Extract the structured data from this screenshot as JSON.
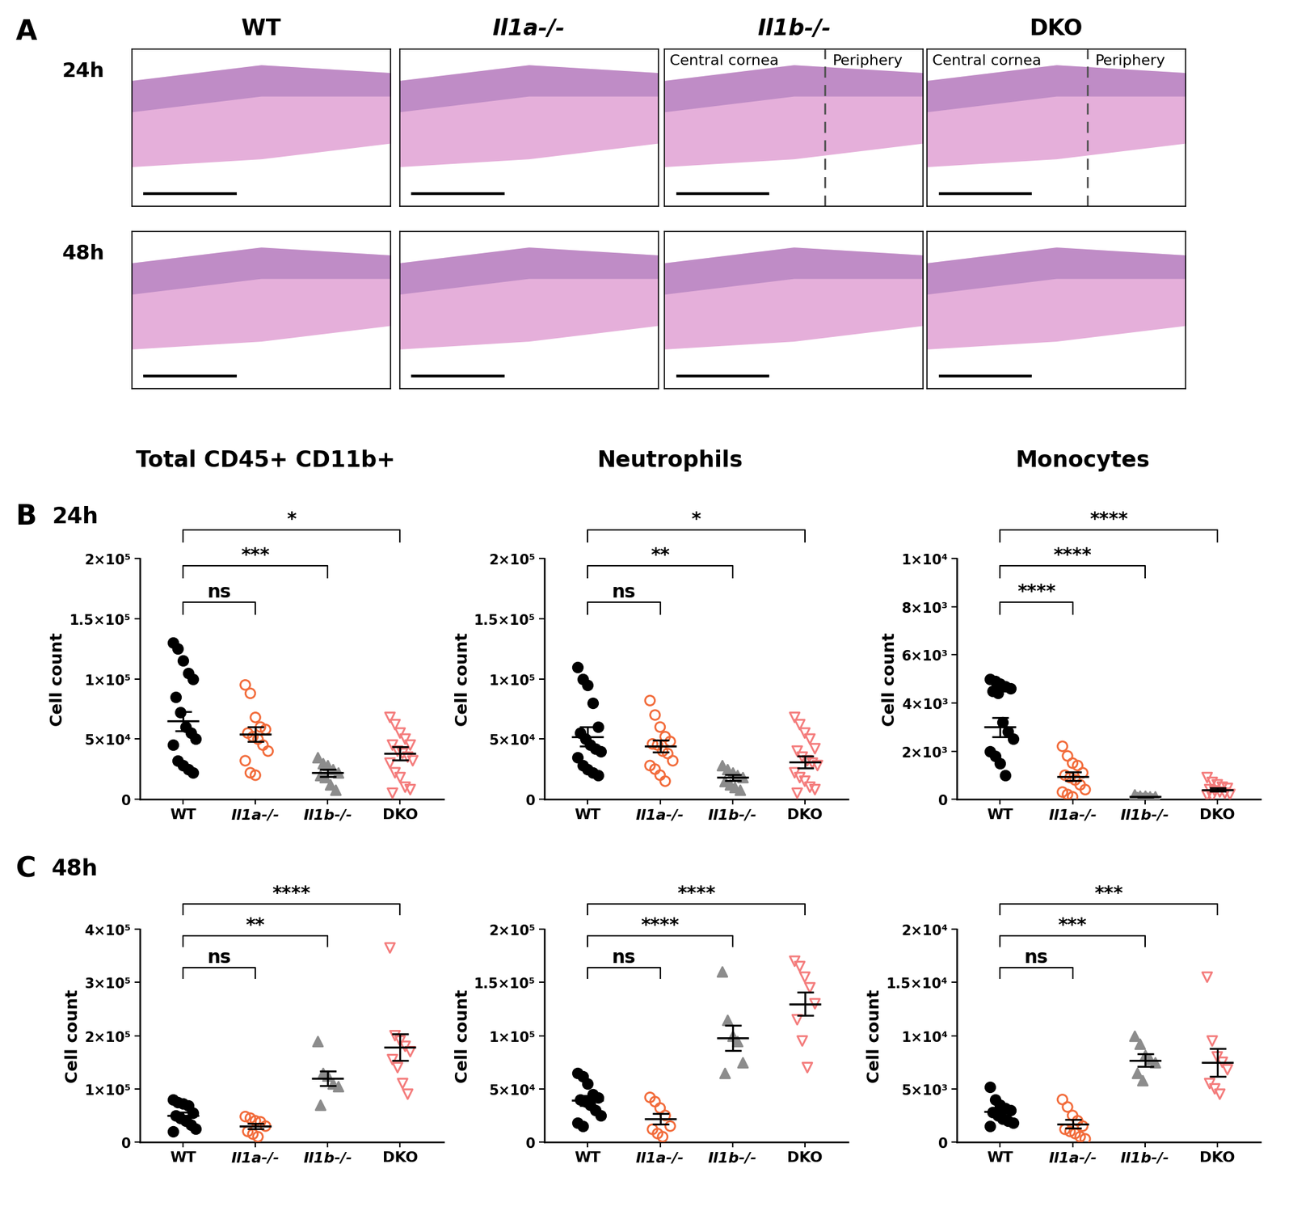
{
  "panel_labels": [
    "A",
    "B",
    "C"
  ],
  "histology": {
    "columns": [
      "WT",
      "Il1a-/-",
      "Il1b-/-",
      "DKO"
    ],
    "rows": [
      "24h",
      "48h"
    ],
    "region_labels": {
      "columns": [
        "Il1b-/-",
        "DKO"
      ],
      "row": "24h",
      "texts": [
        "Central cornea",
        "Periphery"
      ]
    }
  },
  "column_titles": [
    "Total CD45+ CD11b+",
    "Neutrophils",
    "Monocytes"
  ],
  "row_labels": [
    "24h",
    "48h"
  ],
  "chart_data": [
    {
      "type": "scatter",
      "categories": [
        "WT",
        "Il1a-/-",
        "Il1b-/-",
        "DKO"
      ],
      "ylabel": "Cell count",
      "ylim": [
        0,
        200000
      ],
      "yticks": [
        0,
        {
          "value": 50000,
          "label": "5×10⁴"
        },
        {
          "value": 100000,
          "label": "1×10⁵"
        },
        {
          "value": 150000,
          "label": "1.5×10⁵"
        },
        {
          "value": 200000,
          "label": "2×10⁵"
        }
      ],
      "colors": [
        "#000000",
        "#f26b3a",
        "#8c8c8c",
        "#f47c7c"
      ],
      "markers": [
        "circle",
        "open_circle",
        "triangle",
        "open_triangle_down"
      ],
      "points": [
        [
          130000,
          125000,
          115000,
          105000,
          100000,
          85000,
          72000,
          60000,
          55000,
          50000,
          45000,
          32000,
          28000,
          25000,
          22000
        ],
        [
          95000,
          88000,
          68000,
          60000,
          58000,
          55000,
          52000,
          50000,
          45000,
          40000,
          32000,
          22000,
          20000
        ],
        [
          35000,
          30000,
          28000,
          25000,
          22000,
          20000,
          18000,
          12000,
          8000
        ],
        [
          68000,
          62000,
          55000,
          50000,
          45000,
          45000,
          40000,
          38000,
          35000,
          32000,
          30000,
          22000,
          18000,
          10000,
          8000,
          5000
        ]
      ],
      "means": [
        65000,
        54000,
        22000,
        38000
      ],
      "errors": [
        8000,
        6000,
        3000,
        5500
      ],
      "comparisons": [
        {
          "from": "WT",
          "to": "Il1a-/-",
          "label": "ns"
        },
        {
          "from": "WT",
          "to": "Il1b-/-",
          "label": "***"
        },
        {
          "from": "WT",
          "to": "DKO",
          "label": "*"
        }
      ]
    },
    {
      "type": "scatter",
      "categories": [
        "WT",
        "Il1a-/-",
        "Il1b-/-",
        "DKO"
      ],
      "ylabel": "Cell count",
      "ylim": [
        0,
        200000
      ],
      "yticks": [
        0,
        {
          "value": 50000,
          "label": "5×10⁴"
        },
        {
          "value": 100000,
          "label": "1×10⁵"
        },
        {
          "value": 150000,
          "label": "1.5×10⁵"
        },
        {
          "value": 200000,
          "label": "2×10⁵"
        }
      ],
      "colors": [
        "#000000",
        "#f26b3a",
        "#8c8c8c",
        "#f47c7c"
      ],
      "markers": [
        "circle",
        "open_circle",
        "triangle",
        "open_triangle_down"
      ],
      "points": [
        [
          110000,
          100000,
          95000,
          80000,
          60000,
          55000,
          50000,
          45000,
          42000,
          40000,
          35000,
          28000,
          25000,
          22000,
          20000
        ],
        [
          82000,
          70000,
          60000,
          52000,
          48000,
          46000,
          45000,
          40000,
          38000,
          32000,
          28000,
          25000,
          20000,
          15000
        ],
        [
          28000,
          25000,
          22000,
          20000,
          18000,
          15000,
          12000,
          10000,
          8000
        ],
        [
          68000,
          62000,
          55000,
          50000,
          42000,
          40000,
          35000,
          32000,
          30000,
          28000,
          22000,
          18000,
          15000,
          10000,
          8000,
          5000
        ]
      ],
      "means": [
        52000,
        44000,
        18000,
        31000
      ],
      "errors": [
        8000,
        5000,
        2500,
        5000
      ],
      "comparisons": [
        {
          "from": "WT",
          "to": "Il1a-/-",
          "label": "ns"
        },
        {
          "from": "WT",
          "to": "Il1b-/-",
          "label": "**"
        },
        {
          "from": "WT",
          "to": "DKO",
          "label": "*"
        }
      ]
    },
    {
      "type": "scatter",
      "categories": [
        "WT",
        "Il1a-/-",
        "Il1b-/-",
        "DKO"
      ],
      "ylabel": "Cell count",
      "ylim": [
        0,
        10000
      ],
      "yticks": [
        0,
        {
          "value": 2000,
          "label": "2×10³"
        },
        {
          "value": 4000,
          "label": "4×10³"
        },
        {
          "value": 6000,
          "label": "6×10³"
        },
        {
          "value": 8000,
          "label": "8×10³"
        },
        {
          "value": 10000,
          "label": "1×10⁴"
        }
      ],
      "colors": [
        "#000000",
        "#f26b3a",
        "#8c8c8c",
        "#f47c7c"
      ],
      "markers": [
        "circle",
        "open_circle",
        "triangle",
        "open_triangle_down"
      ],
      "points": [
        [
          5000,
          4900,
          4800,
          4700,
          4600,
          4500,
          4400,
          3200,
          2800,
          2500,
          2000,
          1800,
          1500,
          1000
        ],
        [
          2200,
          1800,
          1500,
          1400,
          1100,
          1000,
          900,
          800,
          600,
          400,
          300,
          200,
          100
        ],
        [
          200,
          150,
          150,
          100,
          100,
          80,
          50,
          50,
          30
        ],
        [
          900,
          700,
          600,
          500,
          450,
          400,
          350,
          300,
          250,
          200,
          150,
          100
        ]
      ],
      "means": [
        3000,
        950,
        100,
        400
      ],
      "errors": [
        400,
        180,
        20,
        70
      ],
      "comparisons": [
        {
          "from": "WT",
          "to": "Il1a-/-",
          "label": "****"
        },
        {
          "from": "WT",
          "to": "Il1b-/-",
          "label": "****"
        },
        {
          "from": "WT",
          "to": "DKO",
          "label": "****"
        }
      ]
    },
    {
      "type": "scatter",
      "categories": [
        "WT",
        "Il1a-/-",
        "Il1b-/-",
        "DKO"
      ],
      "ylabel": "Cell count",
      "ylim": [
        0,
        400000
      ],
      "yticks": [
        0,
        {
          "value": 100000,
          "label": "1×10⁵"
        },
        {
          "value": 200000,
          "label": "2×10⁵"
        },
        {
          "value": 300000,
          "label": "3×10⁵"
        },
        {
          "value": 400000,
          "label": "4×10⁵"
        }
      ],
      "colors": [
        "#000000",
        "#f26b3a",
        "#8c8c8c",
        "#f47c7c"
      ],
      "markers": [
        "circle",
        "open_circle",
        "triangle",
        "open_triangle_down"
      ],
      "points": [
        [
          80000,
          75000,
          72000,
          68000,
          55000,
          50000,
          45000,
          40000,
          32000,
          25000,
          20000
        ],
        [
          48000,
          45000,
          40000,
          38000,
          30000,
          20000,
          15000,
          10000
        ],
        [
          190000,
          130000,
          125000,
          110000,
          105000,
          70000
        ],
        [
          365000,
          200000,
          190000,
          180000,
          170000,
          155000,
          140000,
          110000,
          90000
        ]
      ],
      "means": [
        50000,
        30000,
        120000,
        178000
      ],
      "errors": [
        6000,
        5000,
        14000,
        25000
      ],
      "comparisons": [
        {
          "from": "WT",
          "to": "Il1a-/-",
          "label": "ns"
        },
        {
          "from": "WT",
          "to": "Il1b-/-",
          "label": "**"
        },
        {
          "from": "WT",
          "to": "DKO",
          "label": "****"
        }
      ]
    },
    {
      "type": "scatter",
      "categories": [
        "WT",
        "Il1a-/-",
        "Il1b-/-",
        "DKO"
      ],
      "ylabel": "Cell count",
      "ylim": [
        0,
        200000
      ],
      "yticks": [
        0,
        {
          "value": 50000,
          "label": "5×10⁴"
        },
        {
          "value": 100000,
          "label": "1×10⁵"
        },
        {
          "value": 150000,
          "label": "1.5×10⁵"
        },
        {
          "value": 200000,
          "label": "2×10⁵"
        }
      ],
      "colors": [
        "#000000",
        "#f26b3a",
        "#8c8c8c",
        "#f47c7c"
      ],
      "markers": [
        "circle",
        "open_circle",
        "triangle",
        "open_triangle_down"
      ],
      "points": [
        [
          65000,
          62000,
          55000,
          45000,
          42000,
          40000,
          38000,
          35000,
          30000,
          25000,
          18000,
          15000
        ],
        [
          42000,
          38000,
          32000,
          25000,
          15000,
          12000,
          8000,
          5000
        ],
        [
          160000,
          115000,
          100000,
          95000,
          75000,
          65000
        ],
        [
          170000,
          165000,
          155000,
          145000,
          130000,
          115000,
          95000,
          70000
        ]
      ],
      "means": [
        39000,
        22000,
        98000,
        130000
      ],
      "errors": [
        4500,
        5000,
        12000,
        11000
      ],
      "comparisons": [
        {
          "from": "WT",
          "to": "Il1a-/-",
          "label": "ns"
        },
        {
          "from": "WT",
          "to": "Il1b-/-",
          "label": "****"
        },
        {
          "from": "WT",
          "to": "DKO",
          "label": "****"
        }
      ]
    },
    {
      "type": "scatter",
      "categories": [
        "WT",
        "Il1a-/-",
        "Il1b-/-",
        "DKO"
      ],
      "ylabel": "Cell count",
      "ylim": [
        0,
        20000
      ],
      "yticks": [
        0,
        {
          "value": 5000,
          "label": "5×10³"
        },
        {
          "value": 10000,
          "label": "1×10⁴"
        },
        {
          "value": 15000,
          "label": "1.5×10⁴"
        },
        {
          "value": 20000,
          "label": "2×10⁴"
        }
      ],
      "colors": [
        "#000000",
        "#f26b3a",
        "#8c8c8c",
        "#f47c7c"
      ],
      "markers": [
        "circle",
        "open_circle",
        "triangle",
        "open_triangle_down"
      ],
      "points": [
        [
          5200,
          4000,
          3500,
          3200,
          3000,
          2800,
          2500,
          2200,
          2000,
          1800,
          1500
        ],
        [
          4000,
          3300,
          2500,
          2000,
          1500,
          1200,
          1000,
          800,
          500,
          300
        ],
        [
          10000,
          9200,
          8200,
          7800,
          7500,
          6500,
          5800
        ],
        [
          15500,
          9500,
          8000,
          7500,
          6800,
          5500,
          5000,
          4500
        ]
      ],
      "means": [
        2900,
        1700,
        7700,
        7500
      ],
      "errors": [
        320,
        400,
        600,
        1300
      ],
      "comparisons": [
        {
          "from": "WT",
          "to": "Il1a-/-",
          "label": "ns"
        },
        {
          "from": "WT",
          "to": "Il1b-/-",
          "label": "***"
        },
        {
          "from": "WT",
          "to": "DKO",
          "label": "***"
        }
      ]
    }
  ]
}
